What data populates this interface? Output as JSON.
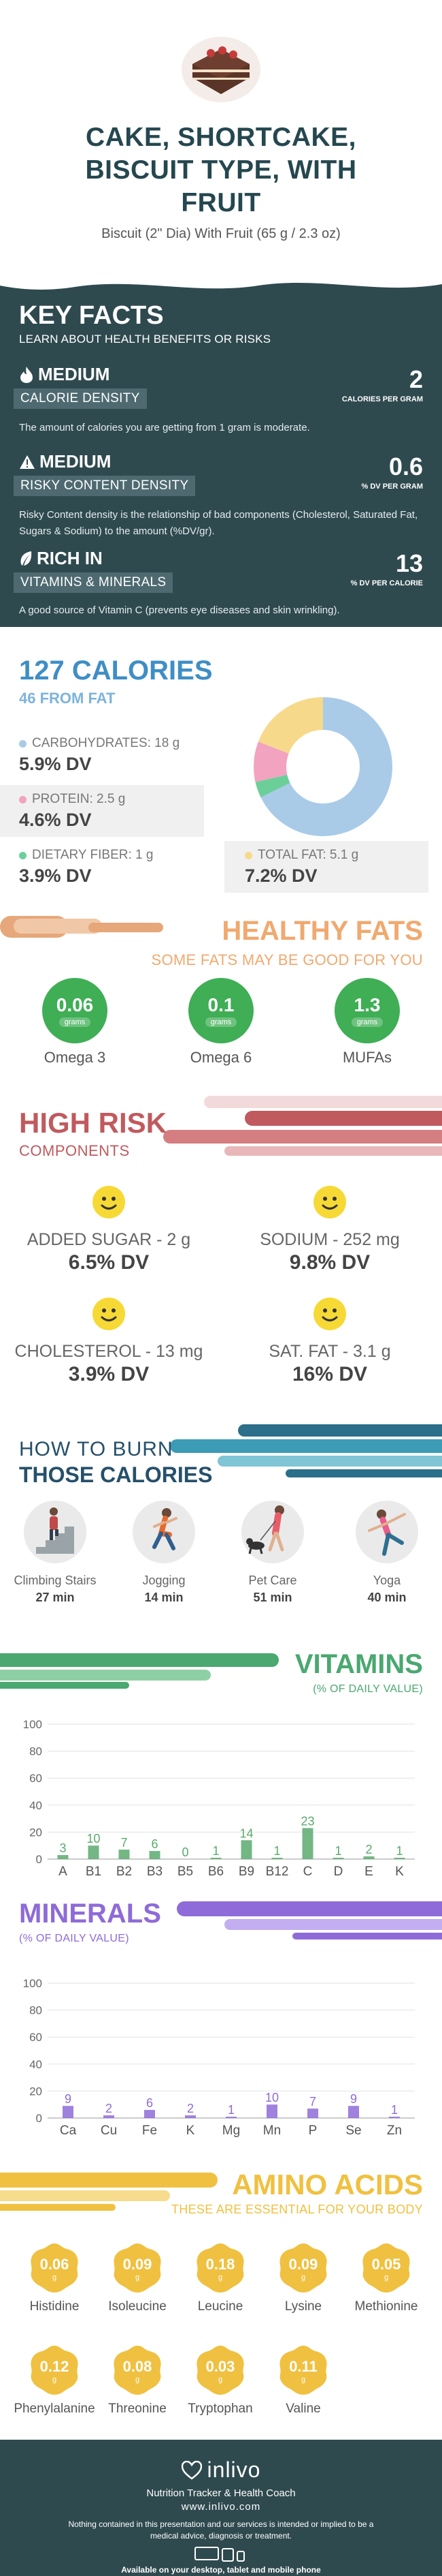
{
  "hero": {
    "title_lines": [
      "CAKE, SHORTCAKE,",
      "BISCUIT TYPE, WITH",
      "FRUIT"
    ],
    "subtitle": "Biscuit (2\" Dia) With Fruit (65 g / 2.3 oz)",
    "image_icon": "cake-slice-icon"
  },
  "key_facts": {
    "title": "KEY FACTS",
    "subtitle": "LEARN ABOUT HEALTH BENEFITS OR RISKS",
    "items": [
      {
        "icon": "flame-icon",
        "level": "MEDIUM",
        "label": "CALORIE DENSITY",
        "value": "2",
        "unit": "CALORIES PER GRAM",
        "desc": "The amount of calories you are getting from 1 gram is moderate."
      },
      {
        "icon": "warning-icon",
        "level": "MEDIUM",
        "label": "RISKY CONTENT DENSITY",
        "value": "0.6",
        "unit": "% DV PER GRAM",
        "desc": "Risky Content density is the relationship of bad components (Cholesterol, Saturated Fat, Sugars & Sodium) to the amount (%DV/gr)."
      },
      {
        "icon": "leaf-icon",
        "level": "RICH  IN",
        "label": "VITAMINS & MINERALS",
        "value": "13",
        "unit": "% DV PER CALORIE",
        "desc": "A good source of Vitamin C (prevents eye diseases and skin wrinkling)."
      }
    ]
  },
  "calories": {
    "title": "127 CALORIES",
    "from_fat": "46 FROM FAT",
    "nutrients": [
      {
        "label": "CARBOHYDRATES: 18 g",
        "dv": "5.9% DV",
        "color": "#a9cbe8",
        "grams": 18
      },
      {
        "label": "PROTEIN: 2.5 g",
        "dv": "4.6% DV",
        "color": "#f2a3c0",
        "grams": 2.5
      },
      {
        "label": "DIETARY FIBER: 1 g",
        "dv": "3.9% DV",
        "color": "#6ccf9a",
        "grams": 1
      },
      {
        "label": "TOTAL FAT: 5.1 g",
        "dv": "7.2% DV",
        "color": "#f7d98b",
        "grams": 5.1
      }
    ]
  },
  "healthy_fats": {
    "title": "HEALTHY FATS",
    "subtitle": "SOME FATS MAY BE GOOD FOR YOU",
    "items": [
      {
        "value": "0.06",
        "unit": "grams",
        "label": "Omega 3"
      },
      {
        "value": "0.1",
        "unit": "grams",
        "label": "Omega 6"
      },
      {
        "value": "1.3",
        "unit": "grams",
        "label": "MUFAs"
      }
    ]
  },
  "high_risk": {
    "title": "HIGH RISK",
    "subtitle": "COMPONENTS",
    "items": [
      {
        "label": "ADDED SUGAR - 2 g",
        "dv": "6.5% DV"
      },
      {
        "label": "SODIUM - 252 mg",
        "dv": "9.8% DV"
      },
      {
        "label": "CHOLESTEROL - 13 mg",
        "dv": "3.9% DV"
      },
      {
        "label": "SAT. FAT - 3.1 g",
        "dv": "16% DV"
      }
    ]
  },
  "burn": {
    "title_line1": "HOW TO BURN",
    "title_line2": "THOSE CALORIES",
    "activities": [
      {
        "label": "Climbing Stairs",
        "time": "27 min",
        "icon": "stairs-climber-icon"
      },
      {
        "label": "Jogging",
        "time": "14 min",
        "icon": "jogger-icon"
      },
      {
        "label": "Pet Care",
        "time": "51 min",
        "icon": "dog-walker-icon"
      },
      {
        "label": "Yoga",
        "time": "40 min",
        "icon": "yoga-icon"
      }
    ]
  },
  "vitamins": {
    "title": "VITAMINS",
    "subtitle": "(% OF DAILY VALUE)",
    "color": "#5aaa6e"
  },
  "minerals": {
    "title": "MINERALS",
    "subtitle": "(% OF DAILY VALUE)",
    "color": "#8e6bd8"
  },
  "amino": {
    "title": "AMINO ACIDS",
    "subtitle": "THESE ARE ESSENTIAL FOR YOUR BODY",
    "unit": "g",
    "items": [
      {
        "value": "0.06",
        "label": "Histidine"
      },
      {
        "value": "0.09",
        "label": "Isoleucine"
      },
      {
        "value": "0.18",
        "label": "Leucine"
      },
      {
        "value": "0.09",
        "label": "Lysine"
      },
      {
        "value": "0.05",
        "label": "Methionine"
      },
      {
        "value": "0.12",
        "label": "Phenylalanine"
      },
      {
        "value": "0.08",
        "label": "Threonine"
      },
      {
        "value": "0.03",
        "label": "Tryptophan"
      },
      {
        "value": "0.11",
        "label": "Valine"
      }
    ]
  },
  "footer": {
    "logo": "inlivo",
    "tagline": "Nutrition Tracker & Health Coach",
    "url": "www.inlivo.com",
    "disclaimer": "Nothing contained in this presentation and our services is intended or implied to be a medical advice, diagnosis or treatment.",
    "available": "Available on your desktop, tablet and mobile phone"
  },
  "chart_data": [
    {
      "type": "bar",
      "title": "VITAMINS",
      "subtitle": "(% OF DAILY VALUE)",
      "categories": [
        "A",
        "B1",
        "B2",
        "B3",
        "B5",
        "B6",
        "B9",
        "B12",
        "C",
        "D",
        "E",
        "K"
      ],
      "values": [
        3,
        10,
        7,
        6,
        0,
        1,
        14,
        1,
        23,
        1,
        2,
        1
      ],
      "ylim": [
        0,
        100
      ],
      "yticks": [
        0,
        20,
        40,
        60,
        80,
        100
      ],
      "grid": true
    },
    {
      "type": "bar",
      "title": "MINERALS",
      "subtitle": "(% OF DAILY VALUE)",
      "categories": [
        "Ca",
        "Cu",
        "Fe",
        "K",
        "Mg",
        "Mn",
        "P",
        "Se",
        "Zn"
      ],
      "values": [
        9,
        2,
        6,
        2,
        1,
        10,
        7,
        9,
        1
      ],
      "ylim": [
        0,
        100
      ],
      "yticks": [
        0,
        20,
        40,
        60,
        80,
        100
      ],
      "grid": true
    }
  ]
}
